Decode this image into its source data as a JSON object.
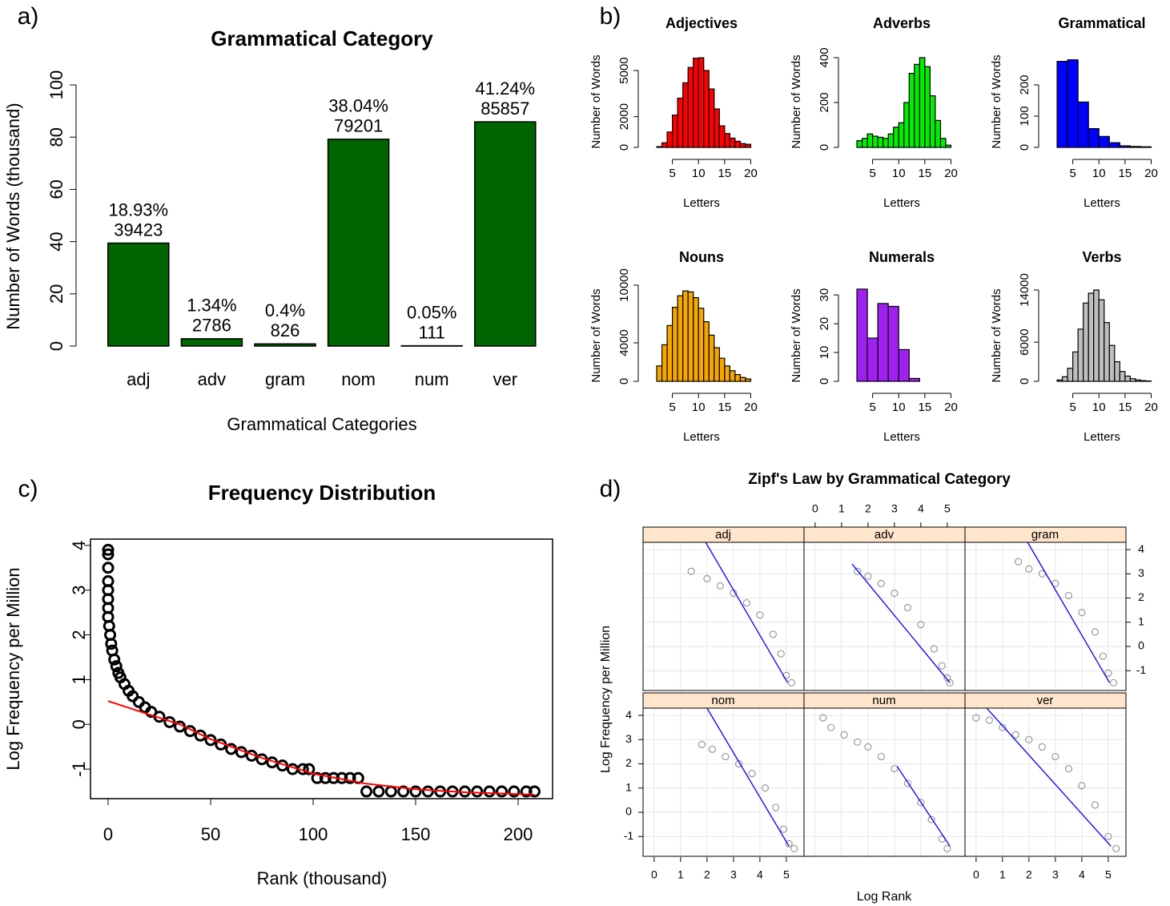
{
  "chart_data": [
    {
      "type": "bar",
      "label": "a)",
      "title": "Grammatical Category",
      "x_label": "Grammatical Categories",
      "y_label": "Number of Words (thousand)",
      "categories": [
        "adj",
        "adv",
        "gram",
        "nom",
        "num",
        "ver"
      ],
      "values": [
        39.423,
        2.786,
        0.826,
        79.201,
        0.111,
        85.857
      ],
      "value_labels": [
        "39423",
        "2786",
        "826",
        "79201",
        "111",
        "85857"
      ],
      "percent_labels": [
        "18.93%",
        "1.34%",
        "0.4%",
        "38.04%",
        "0.05%",
        "41.24%"
      ],
      "color": "#006400",
      "ylim": [
        0,
        100
      ],
      "yticks": [
        0,
        20,
        40,
        60,
        80,
        100
      ]
    },
    {
      "type": "histogram",
      "label": "b)",
      "x_label": "Letters",
      "y_label": "Number of Words",
      "xlim": [
        0,
        21
      ],
      "xticks": [
        5,
        10,
        15,
        20
      ],
      "panels": [
        {
          "title": "Adjectives",
          "color": "#ff0000",
          "bins": [
            2,
            3,
            4,
            5,
            6,
            7,
            8,
            9,
            10,
            11,
            12,
            13,
            14,
            15,
            16,
            17,
            18,
            19,
            20
          ],
          "counts": [
            50,
            300,
            1000,
            2100,
            3200,
            4200,
            5200,
            5800,
            5830,
            5000,
            3800,
            2500,
            1400,
            900,
            600,
            400,
            250,
            200
          ],
          "ylim": [
            0,
            5940
          ],
          "yticks": [
            0,
            2000,
            5000
          ]
        },
        {
          "title": "Adverbs",
          "color": "#00ee00",
          "bins": [
            2,
            3,
            4,
            5,
            6,
            7,
            8,
            9,
            10,
            11,
            12,
            13,
            14,
            15,
            16,
            17,
            18,
            19,
            20
          ],
          "counts": [
            30,
            40,
            60,
            50,
            45,
            40,
            60,
            90,
            110,
            200,
            330,
            370,
            400,
            360,
            230,
            120,
            40,
            10
          ],
          "ylim": [
            0,
            407
          ],
          "yticks": [
            0,
            200,
            400
          ]
        },
        {
          "title": "Grammatical",
          "color": "#0000ff",
          "bins": [
            2,
            4,
            6,
            8,
            10,
            12,
            14,
            16,
            18,
            20
          ],
          "counts": [
            275,
            280,
            145,
            60,
            35,
            15,
            5,
            3,
            2
          ],
          "ylim": [
            0,
            292
          ],
          "yticks": [
            0,
            100,
            200
          ]
        },
        {
          "title": "Nouns",
          "color": "#f5a700",
          "bins": [
            2,
            3,
            4,
            5,
            6,
            7,
            8,
            9,
            10,
            11,
            12,
            13,
            14,
            15,
            16,
            17,
            18,
            19,
            20
          ],
          "counts": [
            1600,
            3800,
            5800,
            7700,
            8900,
            9400,
            9300,
            8700,
            7600,
            6200,
            4800,
            3500,
            2400,
            1600,
            1100,
            700,
            400,
            250
          ],
          "ylim": [
            0,
            9500
          ],
          "yticks": [
            0,
            4000,
            10000
          ]
        },
        {
          "title": "Numerals",
          "color": "#a020f0",
          "bins": [
            2,
            4,
            6,
            8,
            10,
            12,
            14
          ],
          "counts": [
            32,
            15,
            27,
            26,
            11,
            1
          ],
          "ylim": [
            0,
            31.7
          ],
          "yticks": [
            0,
            10,
            20,
            30
          ]
        },
        {
          "title": "Verbs",
          "color": "#bebebe",
          "bins": [
            2,
            3,
            4,
            5,
            6,
            7,
            8,
            9,
            10,
            11,
            12,
            13,
            14,
            15,
            16,
            17,
            18,
            19,
            20
          ],
          "counts": [
            200,
            700,
            2000,
            4500,
            8000,
            12000,
            13500,
            14000,
            12500,
            9000,
            5500,
            3000,
            1500,
            800,
            400,
            200,
            100,
            50
          ],
          "ylim": [
            0,
            14000
          ],
          "yticks": [
            0,
            6000,
            14000
          ]
        }
      ]
    },
    {
      "type": "scatter",
      "label": "c)",
      "title": "Frequency Distribution",
      "x_label": "Rank (thousand)",
      "y_label": "Log Frequency per Million",
      "xlim": [
        -8.6,
        216.8
      ],
      "ylim": [
        -1.66,
        4.14
      ],
      "xticks": [
        0,
        50,
        100,
        150,
        200
      ],
      "yticks": [
        -1,
        0,
        1,
        2,
        3,
        4
      ],
      "point_color": "#000000",
      "line_color": "#ff0000",
      "x": [
        0,
        0,
        0,
        0,
        0,
        0,
        0,
        0,
        0.5,
        1,
        1.5,
        2,
        3,
        4,
        5,
        6,
        8,
        10,
        12,
        15,
        18,
        21,
        25,
        30,
        35,
        40,
        45,
        50,
        55,
        60,
        65,
        70,
        75,
        80,
        85,
        90,
        95,
        98,
        102,
        106,
        110,
        114,
        118,
        122,
        126,
        132,
        138,
        144,
        150,
        156,
        162,
        168,
        174,
        180,
        186,
        192,
        198,
        204,
        208
      ],
      "y": [
        3.9,
        3.8,
        3.5,
        3.2,
        3.0,
        2.8,
        2.6,
        2.4,
        2.2,
        2.0,
        1.8,
        1.65,
        1.45,
        1.3,
        1.15,
        1.05,
        0.9,
        0.75,
        0.63,
        0.5,
        0.38,
        0.28,
        0.17,
        0.05,
        -0.05,
        -0.15,
        -0.25,
        -0.35,
        -0.45,
        -0.55,
        -0.62,
        -0.7,
        -0.78,
        -0.85,
        -0.92,
        -1.0,
        -1.0,
        -1.0,
        -1.2,
        -1.2,
        -1.2,
        -1.2,
        -1.2,
        -1.2,
        -1.5,
        -1.5,
        -1.5,
        -1.5,
        -1.5,
        -1.5,
        -1.5,
        -1.5,
        -1.5,
        -1.5,
        -1.5,
        -1.5,
        -1.5,
        -1.5,
        -1.5
      ],
      "fit_x": [
        0,
        10,
        20,
        35,
        50,
        75,
        100,
        125,
        150,
        175,
        208
      ],
      "fit_y": [
        0.52,
        0.37,
        0.22,
        0.0,
        -0.33,
        -0.75,
        -1.1,
        -1.32,
        -1.45,
        -1.52,
        -1.57
      ]
    },
    {
      "type": "lattice",
      "label": "d)",
      "title": "Zipf's Law by Grammatical Category",
      "x_label": "Log Rank",
      "y_label": "Log Frequency per Million",
      "xlim": [
        -0.42,
        5.67
      ],
      "ylim": [
        -1.82,
        4.3
      ],
      "xticks": [
        0,
        1,
        2,
        3,
        4,
        5
      ],
      "yticks": [
        -1,
        0,
        1,
        2,
        3,
        4
      ],
      "point_color": "#999999",
      "line_color": "#0000ff",
      "strip_color": "#ffe5cc",
      "panels": [
        {
          "name": "adj",
          "x": [
            1.4,
            2,
            2.5,
            3,
            3.5,
            4,
            4.5,
            4.8,
            5,
            5.2
          ],
          "y": [
            3.1,
            2.8,
            2.5,
            2.2,
            1.8,
            1.3,
            0.5,
            -0.3,
            -1.2,
            -1.5
          ],
          "fit_x": [
            1.95,
            5.05
          ],
          "fit_y": [
            4.3,
            -1.5
          ]
        },
        {
          "name": "adv",
          "x": [
            1.6,
            2,
            2.5,
            3,
            3.5,
            4,
            4.5,
            4.8,
            5,
            5.1
          ],
          "y": [
            3.1,
            2.9,
            2.6,
            2.2,
            1.6,
            0.9,
            -0.1,
            -0.8,
            -1.3,
            -1.5
          ],
          "fit_x": [
            1.4,
            5.1
          ],
          "fit_y": [
            3.4,
            -1.5
          ]
        },
        {
          "name": "gram",
          "x": [
            1.6,
            2,
            2.5,
            3,
            3.5,
            4,
            4.5,
            4.8,
            5,
            5.2
          ],
          "y": [
            3.5,
            3.2,
            3.0,
            2.6,
            2.1,
            1.4,
            0.6,
            -0.4,
            -1.1,
            -1.5
          ],
          "fit_x": [
            1.95,
            5.05
          ],
          "fit_y": [
            4.3,
            -1.5
          ]
        },
        {
          "name": "nom",
          "x": [
            1.8,
            2.2,
            2.7,
            3.2,
            3.7,
            4.2,
            4.6,
            4.9,
            5.1,
            5.3
          ],
          "y": [
            2.8,
            2.6,
            2.3,
            2.0,
            1.6,
            1.0,
            0.2,
            -0.7,
            -1.3,
            -1.5
          ],
          "fit_x": [
            2,
            5.1
          ],
          "fit_y": [
            4.3,
            -1.4
          ]
        },
        {
          "name": "num",
          "x": [
            0.3,
            0.6,
            1.1,
            1.6,
            2,
            2.5,
            3,
            3.5,
            4,
            4.4,
            4.8,
            5.0
          ],
          "y": [
            3.9,
            3.5,
            3.2,
            2.9,
            2.7,
            2.3,
            1.8,
            1.2,
            0.4,
            -0.3,
            -1.1,
            -1.5
          ],
          "fit_x": [
            3.1,
            5.1
          ],
          "fit_y": [
            1.9,
            -1.4
          ]
        },
        {
          "name": "ver",
          "x": [
            0,
            0.5,
            1,
            1.5,
            2,
            2.5,
            3,
            3.5,
            4,
            4.5,
            5,
            5.3
          ],
          "y": [
            3.9,
            3.8,
            3.5,
            3.2,
            3.0,
            2.7,
            2.3,
            1.8,
            1.1,
            0.3,
            -1.0,
            -1.5
          ],
          "fit_x": [
            0.4,
            5.1
          ],
          "fit_y": [
            4.3,
            -1.4
          ]
        }
      ]
    }
  ]
}
